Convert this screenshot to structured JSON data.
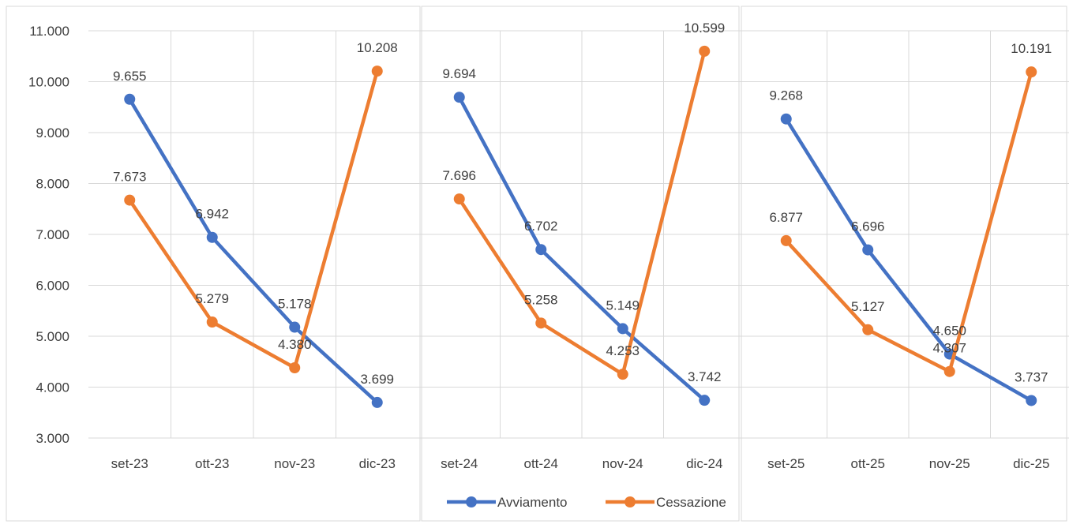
{
  "chart_data": {
    "type": "line",
    "ylim": [
      3000,
      11000
    ],
    "yticks": [
      "3.000",
      "4.000",
      "5.000",
      "6.000",
      "7.000",
      "8.000",
      "9.000",
      "10.000",
      "11.000"
    ],
    "grid": true,
    "legend": "bottom",
    "panels": [
      {
        "categories": [
          "set-23",
          "ott-23",
          "nov-23",
          "dic-23"
        ],
        "series": [
          {
            "name": "Avviamento",
            "values": [
              9655,
              6942,
              5178,
              3699
            ],
            "labels": [
              "9.655",
              "6.942",
              "5.178",
              "3.699"
            ]
          },
          {
            "name": "Cessazione",
            "values": [
              7673,
              5279,
              4380,
              10208
            ],
            "labels": [
              "7.673",
              "5.279",
              "4.380",
              "10.208"
            ]
          }
        ]
      },
      {
        "categories": [
          "set-24",
          "ott-24",
          "nov-24",
          "dic-24"
        ],
        "series": [
          {
            "name": "Avviamento",
            "values": [
              9694,
              6702,
              5149,
              3742
            ],
            "labels": [
              "9.694",
              "6.702",
              "5.149",
              "3.742"
            ]
          },
          {
            "name": "Cessazione",
            "values": [
              7696,
              5258,
              4253,
              10599
            ],
            "labels": [
              "7.696",
              "5.258",
              "4.253",
              "10.599"
            ]
          }
        ]
      },
      {
        "categories": [
          "set-25",
          "ott-25",
          "nov-25",
          "dic-25"
        ],
        "series": [
          {
            "name": "Avviamento",
            "values": [
              9268,
              6696,
              4650,
              3737
            ],
            "labels": [
              "9.268",
              "6.696",
              "4.650",
              "3.737"
            ]
          },
          {
            "name": "Cessazione",
            "values": [
              6877,
              5127,
              4307,
              10191
            ],
            "labels": [
              "6.877",
              "5.127",
              "4.307",
              "10.191"
            ]
          }
        ]
      }
    ],
    "legend_items": [
      {
        "name": "Avviamento",
        "color": "#4472C4"
      },
      {
        "name": "Cessazione",
        "color": "#ED7D31"
      }
    ]
  }
}
